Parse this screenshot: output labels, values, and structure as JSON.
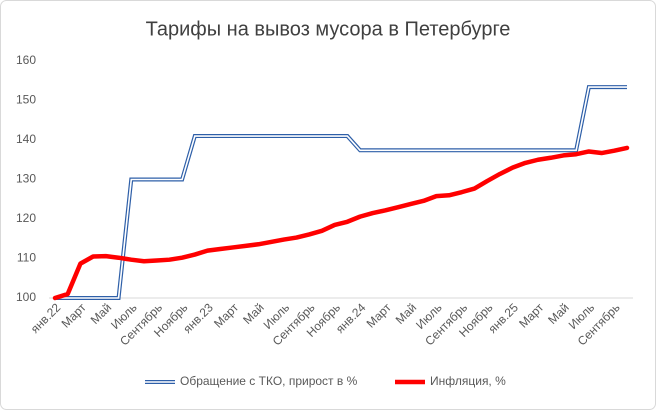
{
  "chart_data": {
    "type": "line",
    "title": "Тарифы на вывоз мусора в Петербурге",
    "categories": [
      "янв.22",
      null,
      "Март",
      null,
      "Май",
      null,
      "Июль",
      null,
      "Сентябрь",
      null,
      "Ноябрь",
      null,
      "янв.23",
      null,
      "Март",
      null,
      "Май",
      null,
      "Июль",
      null,
      "Сентябрь",
      null,
      "Ноябрь",
      null,
      "янв.24",
      null,
      "Март",
      null,
      "Май",
      null,
      "Июль",
      null,
      "Сентябрь",
      null,
      "Ноябрь",
      null,
      "янв.25",
      null,
      "Март",
      null,
      "Май",
      null,
      "Июль",
      null,
      "Сентябрь",
      null
    ],
    "series": [
      {
        "name": "Обращение с ТКО, прирост в %",
        "color": "#2e5fa8",
        "style": "double",
        "values": [
          100,
          100,
          100,
          100,
          100,
          100,
          130,
          130,
          130,
          130,
          130,
          141,
          141,
          141,
          141,
          141,
          141,
          141,
          141,
          141,
          141,
          141,
          141,
          141,
          137.4,
          137.4,
          137.4,
          137.4,
          137.4,
          137.4,
          137.4,
          137.4,
          137.4,
          137.4,
          137.4,
          137.4,
          137.4,
          137.4,
          137.4,
          137.4,
          137.4,
          137.4,
          153.4,
          153.4,
          153.4,
          153.4
        ]
      },
      {
        "name": "Инфляция, %",
        "color": "#ff0000",
        "style": "solid",
        "values": [
          100,
          101,
          108.7,
          110.5,
          110.6,
          110.2,
          109.7,
          109.3,
          109.5,
          109.7,
          110.2,
          111,
          112,
          112.4,
          112.8,
          113.2,
          113.6,
          114.2,
          114.8,
          115.3,
          116.1,
          117,
          118.5,
          119.3,
          120.6,
          121.5,
          122.2,
          123,
          123.8,
          124.6,
          125.8,
          126,
          126.8,
          127.7,
          129.6,
          131.4,
          133,
          134.2,
          135,
          135.5,
          136.1,
          136.4,
          137.1,
          136.7,
          137.3,
          138
        ]
      }
    ],
    "ylim": [
      100,
      160
    ],
    "yticks": [
      100,
      110,
      120,
      130,
      140,
      150,
      160
    ],
    "grid": false,
    "legend": "bottom"
  }
}
